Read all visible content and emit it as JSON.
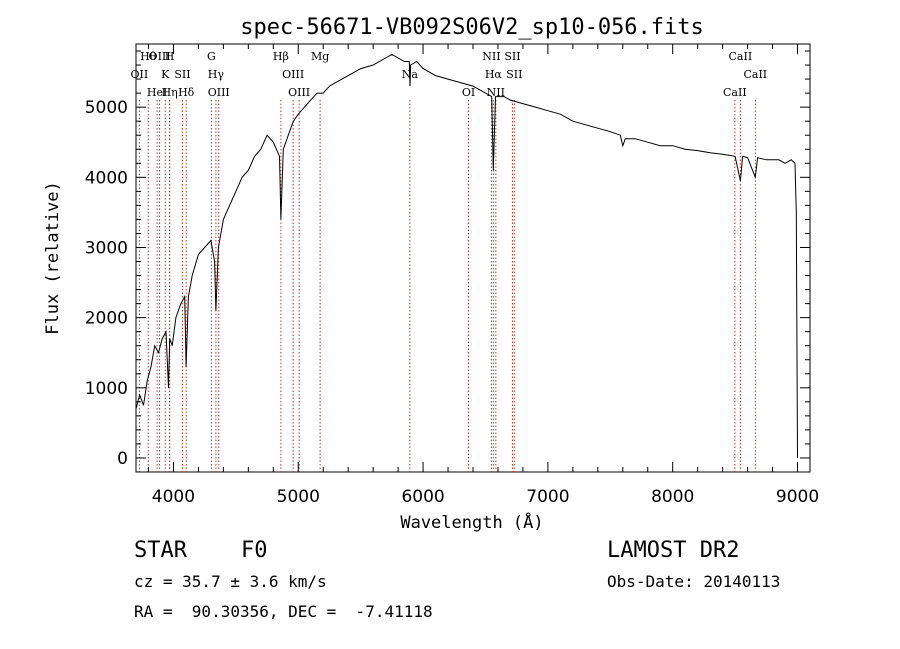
{
  "chart_data": {
    "type": "line",
    "title": "spec-56671-VB092S06V2_sp10-056.fits",
    "xlabel": "Wavelength (Å)",
    "ylabel": "Flux (relative)",
    "xlim": [
      3700,
      9100
    ],
    "ylim": [
      -200,
      5900
    ],
    "x_ticks": [
      4000,
      5000,
      6000,
      7000,
      8000,
      9000
    ],
    "y_ticks": [
      0,
      1000,
      2000,
      3000,
      4000,
      5000
    ],
    "x_minor_step": 200,
    "y_minor_step": 200,
    "grid": false,
    "series": [
      {
        "x": [
          3700,
          3730,
          3760,
          3790,
          3820,
          3850,
          3880,
          3910,
          3940,
          3960,
          3970,
          3990,
          4020,
          4060,
          4090,
          4101,
          4120,
          4150,
          4200,
          4250,
          4300,
          4330,
          4340,
          4360,
          4400,
          4450,
          4500,
          4550,
          4600,
          4650,
          4700,
          4750,
          4800,
          4850,
          4861,
          4880,
          4920,
          4960,
          5000,
          5050,
          5100,
          5150,
          5200,
          5250,
          5300,
          5400,
          5500,
          5600,
          5700,
          5750,
          5800,
          5850,
          5890,
          5895,
          5900,
          5950,
          6000,
          6100,
          6200,
          6300,
          6400,
          6500,
          6550,
          6563,
          6580,
          6650,
          6700,
          6800,
          6900,
          7000,
          7100,
          7200,
          7300,
          7400,
          7500,
          7580,
          7600,
          7620,
          7700,
          7800,
          7900,
          8000,
          8100,
          8200,
          8300,
          8400,
          8500,
          8542,
          8560,
          8600,
          8662,
          8680,
          8750,
          8850,
          8900,
          8950,
          8980,
          8990,
          9000
        ],
        "y": [
          700,
          900,
          750,
          1100,
          1300,
          1600,
          1500,
          1700,
          1800,
          1000,
          1700,
          1600,
          2000,
          2200,
          2300,
          1300,
          2300,
          2600,
          2900,
          3000,
          3100,
          2800,
          2100,
          3000,
          3400,
          3600,
          3800,
          4000,
          4100,
          4300,
          4400,
          4600,
          4500,
          4300,
          3400,
          4400,
          4600,
          4800,
          4900,
          5000,
          5100,
          5200,
          5200,
          5300,
          5350,
          5450,
          5550,
          5600,
          5700,
          5750,
          5700,
          5650,
          5650,
          5300,
          5600,
          5650,
          5550,
          5450,
          5400,
          5350,
          5300,
          5200,
          5150,
          4100,
          5150,
          5150,
          5100,
          5050,
          5000,
          4950,
          4900,
          4800,
          4750,
          4700,
          4650,
          4600,
          4450,
          4550,
          4550,
          4500,
          4450,
          4450,
          4400,
          4380,
          4350,
          4330,
          4300,
          3950,
          4300,
          4280,
          4000,
          4280,
          4250,
          4250,
          4200,
          4250,
          4200,
          3500,
          0
        ]
      }
    ],
    "line_markers": [
      {
        "wl": 3798,
        "label": "Hθ"
      },
      {
        "wl": 3727,
        "label": "OII"
      },
      {
        "wl": 3869,
        "label": "HeI"
      },
      {
        "wl": 3889,
        "label": "OIII"
      },
      {
        "wl": 3934,
        "label": "K"
      },
      {
        "wl": 3970,
        "label": "Hη"
      },
      {
        "wl": 3969,
        "label": "H"
      },
      {
        "wl": 4072,
        "label": "SII"
      },
      {
        "wl": 4102,
        "label": "Hδ"
      },
      {
        "wl": 4304,
        "label": "G"
      },
      {
        "wl": 4340,
        "label": "Hγ"
      },
      {
        "wl": 4363,
        "label": "OIII"
      },
      {
        "wl": 4861,
        "label": "Hβ"
      },
      {
        "wl": 4959,
        "label": "OIII"
      },
      {
        "wl": 5007,
        "label": "OIII"
      },
      {
        "wl": 5175,
        "label": "Mg"
      },
      {
        "wl": 5894,
        "label": "Na"
      },
      {
        "wl": 6364,
        "label": "OI"
      },
      {
        "wl": 6548,
        "label": "NII"
      },
      {
        "wl": 6563,
        "label": "Hα"
      },
      {
        "wl": 6583,
        "label": "NII"
      },
      {
        "wl": 6716,
        "label": "SII"
      },
      {
        "wl": 6731,
        "label": "SII"
      },
      {
        "wl": 8498,
        "label": "CaII"
      },
      {
        "wl": 8542,
        "label": "CaII"
      },
      {
        "wl": 8662,
        "label": "CaII"
      }
    ]
  },
  "info": {
    "class_label": "STAR",
    "subclass_label": "F0",
    "survey_label": "LAMOST DR2",
    "cz_text": "cz = 35.7 ± 3.6 km/s",
    "obsdate_text": "Obs-Date: 20140113",
    "radec_text": "RA =  90.30356, DEC =  -7.41118"
  }
}
